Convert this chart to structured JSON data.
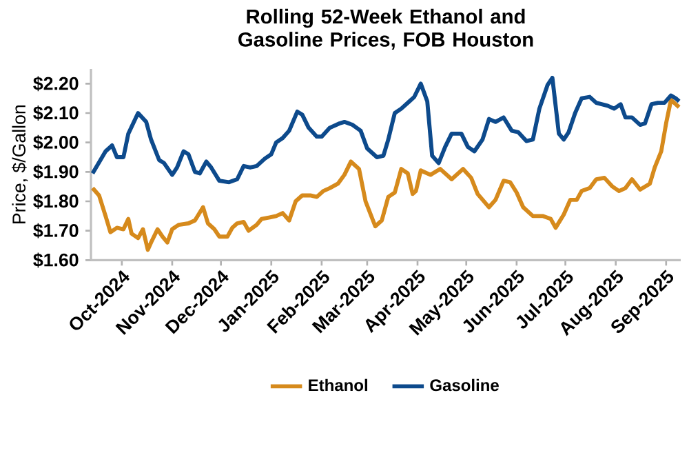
{
  "chart_data": {
    "type": "line",
    "title": "Rolling 52-Week Ethanol and Gasoline Prices, FOB Houston",
    "ylabel": "Price, $/Gallon",
    "xlim": [
      "2024-09-12",
      "2025-09-10"
    ],
    "xticks": [
      {
        "value": "2024-10-01",
        "label": "Oct-2024"
      },
      {
        "value": "2024-11-01",
        "label": "Nov-2024"
      },
      {
        "value": "2024-12-01",
        "label": "Dec-2024"
      },
      {
        "value": "2025-01-01",
        "label": "Jan-2025"
      },
      {
        "value": "2025-02-01",
        "label": "Feb-2025"
      },
      {
        "value": "2025-03-01",
        "label": "Mar-2025"
      },
      {
        "value": "2025-04-01",
        "label": "Apr-2025"
      },
      {
        "value": "2025-05-01",
        "label": "May-2025"
      },
      {
        "value": "2025-06-01",
        "label": "Jun-2025"
      },
      {
        "value": "2025-07-01",
        "label": "Jul-2025"
      },
      {
        "value": "2025-08-01",
        "label": "Aug-2025"
      },
      {
        "value": "2025-09-01",
        "label": "Sep-2025"
      }
    ],
    "ylim": [
      1.6,
      2.25
    ],
    "yticks": [
      {
        "value": 1.6,
        "label": "$1.60"
      },
      {
        "value": 1.7,
        "label": "$1.70"
      },
      {
        "value": 1.8,
        "label": "$1.80"
      },
      {
        "value": 1.9,
        "label": "$1.90"
      },
      {
        "value": 2.0,
        "label": "$2.00"
      },
      {
        "value": 2.1,
        "label": "$2.10"
      },
      {
        "value": 2.2,
        "label": "$2.20"
      }
    ],
    "grid": false,
    "legend": "bottom",
    "marker": "none",
    "line_style": "solid",
    "series": [
      {
        "name": "Ethanol",
        "color": "#d68a1c",
        "x": [
          "2024-09-13",
          "2024-09-17",
          "2024-09-21",
          "2024-09-24",
          "2024-09-28",
          "2024-10-02",
          "2024-10-05",
          "2024-10-07",
          "2024-10-11",
          "2024-10-14",
          "2024-10-17",
          "2024-10-19",
          "2024-10-23",
          "2024-10-26",
          "2024-10-29",
          "2024-11-01",
          "2024-11-05",
          "2024-11-11",
          "2024-11-15",
          "2024-11-20",
          "2024-11-23",
          "2024-11-27",
          "2024-11-30",
          "2024-12-05",
          "2024-12-08",
          "2024-12-11",
          "2024-12-15",
          "2024-12-18",
          "2024-12-23",
          "2024-12-26",
          "2024-12-31",
          "2025-01-04",
          "2025-01-08",
          "2025-01-12",
          "2025-01-16",
          "2025-01-20",
          "2025-01-25",
          "2025-01-29",
          "2025-02-02",
          "2025-02-06",
          "2025-02-11",
          "2025-02-15",
          "2025-02-19",
          "2025-02-24",
          "2025-02-28",
          "2025-03-06",
          "2025-03-10",
          "2025-03-14",
          "2025-03-18",
          "2025-03-22",
          "2025-03-26",
          "2025-03-29",
          "2025-03-31",
          "2025-04-03",
          "2025-04-09",
          "2025-04-15",
          "2025-04-22",
          "2025-04-29",
          "2025-05-04",
          "2025-05-08",
          "2025-05-15",
          "2025-05-19",
          "2025-05-24",
          "2025-05-28",
          "2025-06-01",
          "2025-06-05",
          "2025-06-11",
          "2025-06-17",
          "2025-06-22",
          "2025-06-25",
          "2025-06-30",
          "2025-07-04",
          "2025-07-08",
          "2025-07-11",
          "2025-07-16",
          "2025-07-20",
          "2025-07-25",
          "2025-07-30",
          "2025-08-03",
          "2025-08-07",
          "2025-08-11",
          "2025-08-16",
          "2025-08-22",
          "2025-08-25",
          "2025-08-29",
          "2025-09-01",
          "2025-09-04",
          "2025-09-09"
        ],
        "values": [
          1.845,
          1.82,
          1.75,
          1.695,
          1.71,
          1.705,
          1.74,
          1.69,
          1.675,
          1.705,
          1.635,
          1.66,
          1.705,
          1.68,
          1.66,
          1.705,
          1.72,
          1.725,
          1.735,
          1.78,
          1.725,
          1.705,
          1.68,
          1.68,
          1.71,
          1.725,
          1.73,
          1.7,
          1.72,
          1.74,
          1.745,
          1.75,
          1.76,
          1.735,
          1.8,
          1.82,
          1.82,
          1.815,
          1.835,
          1.845,
          1.86,
          1.89,
          1.935,
          1.91,
          1.8,
          1.715,
          1.735,
          1.815,
          1.83,
          1.91,
          1.895,
          1.825,
          1.835,
          1.905,
          1.89,
          1.91,
          1.875,
          1.91,
          1.88,
          1.825,
          1.78,
          1.805,
          1.87,
          1.865,
          1.83,
          1.78,
          1.75,
          1.75,
          1.74,
          1.71,
          1.755,
          1.805,
          1.805,
          1.835,
          1.845,
          1.875,
          1.88,
          1.85,
          1.835,
          1.845,
          1.875,
          1.84,
          1.86,
          1.915,
          1.97,
          2.065,
          2.145,
          2.12
        ]
      },
      {
        "name": "Gasoline",
        "color": "#0d4a8c",
        "x": [
          "2024-09-13",
          "2024-09-21",
          "2024-09-25",
          "2024-09-28",
          "2024-10-02",
          "2024-10-05",
          "2024-10-11",
          "2024-10-16",
          "2024-10-19",
          "2024-10-24",
          "2024-10-27",
          "2024-11-01",
          "2024-11-04",
          "2024-11-08",
          "2024-11-11",
          "2024-11-15",
          "2024-11-18",
          "2024-11-22",
          "2024-11-25",
          "2024-11-30",
          "2024-12-06",
          "2024-12-11",
          "2024-12-15",
          "2024-12-19",
          "2024-12-23",
          "2024-12-28",
          "2025-01-01",
          "2025-01-04",
          "2025-01-08",
          "2025-01-12",
          "2025-01-17",
          "2025-01-20",
          "2025-01-24",
          "2025-01-29",
          "2025-02-01",
          "2025-02-06",
          "2025-02-12",
          "2025-02-15",
          "2025-02-20",
          "2025-02-25",
          "2025-03-01",
          "2025-03-07",
          "2025-03-11",
          "2025-03-14",
          "2025-03-18",
          "2025-03-22",
          "2025-03-27",
          "2025-03-30",
          "2025-04-03",
          "2025-04-07",
          "2025-04-10",
          "2025-04-14",
          "2025-04-18",
          "2025-04-22",
          "2025-04-28",
          "2025-05-02",
          "2025-05-06",
          "2025-05-11",
          "2025-05-15",
          "2025-05-19",
          "2025-05-24",
          "2025-05-29",
          "2025-06-02",
          "2025-06-07",
          "2025-06-11",
          "2025-06-15",
          "2025-06-20",
          "2025-06-23",
          "2025-06-27",
          "2025-06-30",
          "2025-07-03",
          "2025-07-07",
          "2025-07-11",
          "2025-07-16",
          "2025-07-20",
          "2025-07-27",
          "2025-07-31",
          "2025-08-04",
          "2025-08-07",
          "2025-08-11",
          "2025-08-16",
          "2025-08-19",
          "2025-08-23",
          "2025-08-27",
          "2025-08-31",
          "2025-09-04",
          "2025-09-07",
          "2025-09-09"
        ],
        "values": [
          1.895,
          1.97,
          1.99,
          1.95,
          1.95,
          2.03,
          2.1,
          2.07,
          2.01,
          1.94,
          1.93,
          1.89,
          1.915,
          1.97,
          1.96,
          1.9,
          1.895,
          1.935,
          1.915,
          1.87,
          1.865,
          1.875,
          1.92,
          1.915,
          1.92,
          1.945,
          1.96,
          2.0,
          2.015,
          2.04,
          2.105,
          2.095,
          2.05,
          2.02,
          2.02,
          2.05,
          2.065,
          2.07,
          2.06,
          2.04,
          1.98,
          1.95,
          1.955,
          2.01,
          2.1,
          2.115,
          2.14,
          2.155,
          2.2,
          2.14,
          1.955,
          1.93,
          1.985,
          2.03,
          2.03,
          1.985,
          1.97,
          2.01,
          2.08,
          2.07,
          2.085,
          2.04,
          2.035,
          2.005,
          2.01,
          2.115,
          2.195,
          2.22,
          2.03,
          2.01,
          2.035,
          2.1,
          2.15,
          2.155,
          2.135,
          2.125,
          2.115,
          2.13,
          2.085,
          2.085,
          2.06,
          2.065,
          2.13,
          2.135,
          2.135,
          2.16,
          2.15,
          2.14
        ]
      }
    ]
  }
}
